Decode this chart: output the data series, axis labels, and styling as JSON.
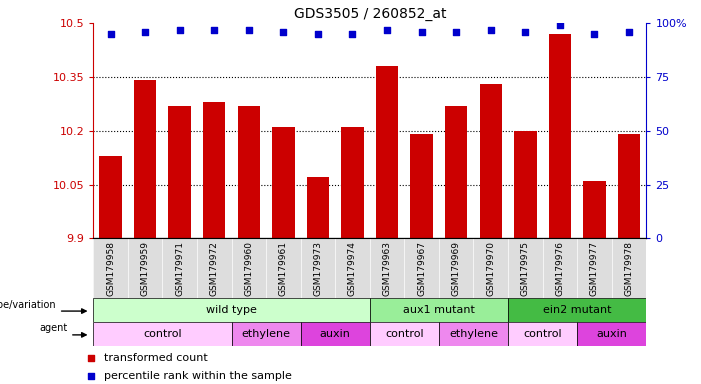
{
  "title": "GDS3505 / 260852_at",
  "samples": [
    "GSM179958",
    "GSM179959",
    "GSM179971",
    "GSM179972",
    "GSM179960",
    "GSM179961",
    "GSM179973",
    "GSM179974",
    "GSM179963",
    "GSM179967",
    "GSM179969",
    "GSM179970",
    "GSM179975",
    "GSM179976",
    "GSM179977",
    "GSM179978"
  ],
  "bar_values": [
    10.13,
    10.34,
    10.27,
    10.28,
    10.27,
    10.21,
    10.07,
    10.21,
    10.38,
    10.19,
    10.27,
    10.33,
    10.2,
    10.47,
    10.06,
    10.19
  ],
  "percentile_values": [
    95,
    96,
    97,
    97,
    97,
    96,
    95,
    95,
    97,
    96,
    96,
    97,
    96,
    99,
    95,
    96
  ],
  "ylim_left": [
    9.9,
    10.5
  ],
  "ylim_right": [
    0,
    100
  ],
  "yticks_left": [
    9.9,
    10.05,
    10.2,
    10.35,
    10.5
  ],
  "yticks_right": [
    0,
    25,
    50,
    75,
    100
  ],
  "bar_color": "#CC0000",
  "dot_color": "#0000CC",
  "genotype_groups": [
    {
      "label": "wild type",
      "start": 0,
      "end": 7,
      "color": "#ccffcc"
    },
    {
      "label": "aux1 mutant",
      "start": 8,
      "end": 11,
      "color": "#99ee99"
    },
    {
      "label": "ein2 mutant",
      "start": 12,
      "end": 15,
      "color": "#44bb44"
    }
  ],
  "agent_groups": [
    {
      "label": "control",
      "start": 0,
      "end": 3,
      "color": "#ffccff"
    },
    {
      "label": "ethylene",
      "start": 4,
      "end": 5,
      "color": "#ee88ee"
    },
    {
      "label": "auxin",
      "start": 6,
      "end": 7,
      "color": "#dd44dd"
    },
    {
      "label": "control",
      "start": 8,
      "end": 9,
      "color": "#ffccff"
    },
    {
      "label": "ethylene",
      "start": 10,
      "end": 11,
      "color": "#ee88ee"
    },
    {
      "label": "control",
      "start": 12,
      "end": 13,
      "color": "#ffccff"
    },
    {
      "label": "auxin",
      "start": 14,
      "end": 15,
      "color": "#dd44dd"
    }
  ],
  "xtick_bg_color": "#dddddd",
  "label_text_left1": "genotype/variation",
  "label_text_left2": "agent"
}
